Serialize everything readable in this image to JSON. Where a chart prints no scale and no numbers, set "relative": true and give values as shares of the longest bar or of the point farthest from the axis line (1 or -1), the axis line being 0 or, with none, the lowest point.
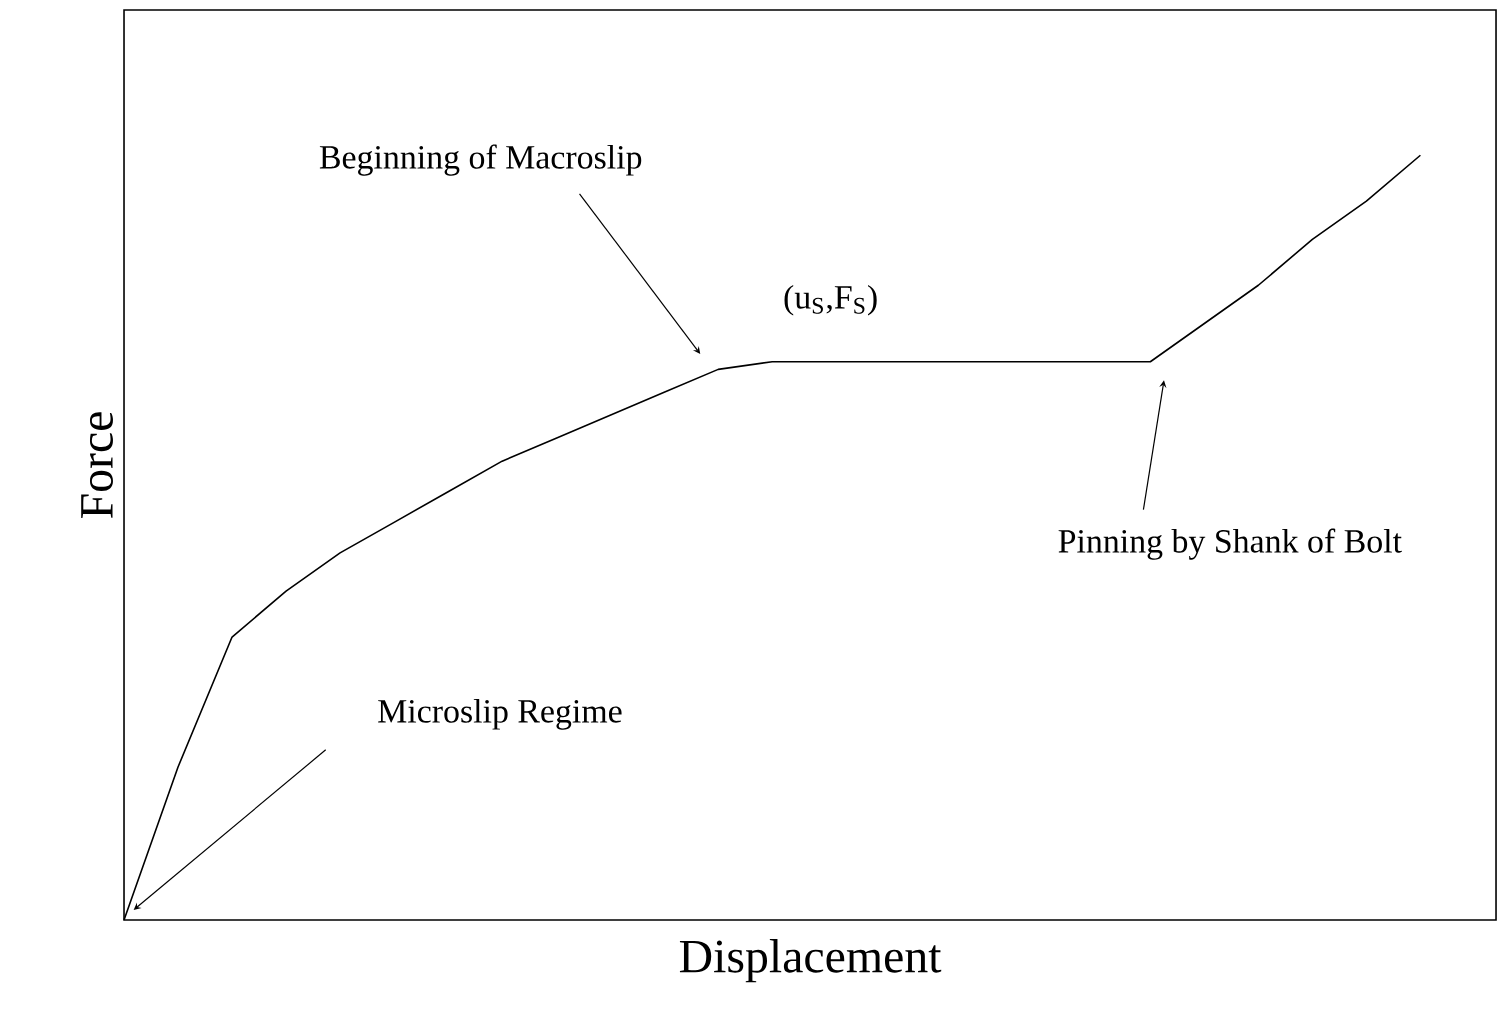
{
  "chart_data": {
    "type": "line",
    "relative": true,
    "xlabel": "Displacement",
    "ylabel": "Force",
    "color": "#000000",
    "categories": [
      null,
      null,
      null,
      null,
      null,
      null,
      null,
      null,
      null,
      null,
      null,
      null,
      null,
      null,
      null,
      null,
      null,
      null,
      null,
      null,
      null,
      null,
      null,
      null,
      null
    ],
    "values": [
      0,
      0.2,
      0.37,
      0.43,
      0.48,
      0.52,
      0.56,
      0.6,
      0.63,
      0.66,
      0.69,
      0.72,
      0.73,
      0.73,
      0.73,
      0.73,
      0.73,
      0.73,
      0.73,
      0.73,
      0.78,
      0.83,
      0.89,
      0.94,
      1
    ],
    "annotations": [
      "Beginning of Macroslip",
      "(u$_{S}$,F$_{S}$)",
      "Pinning by Shank of Bolt",
      "Microslip Regime"
    ]
  }
}
